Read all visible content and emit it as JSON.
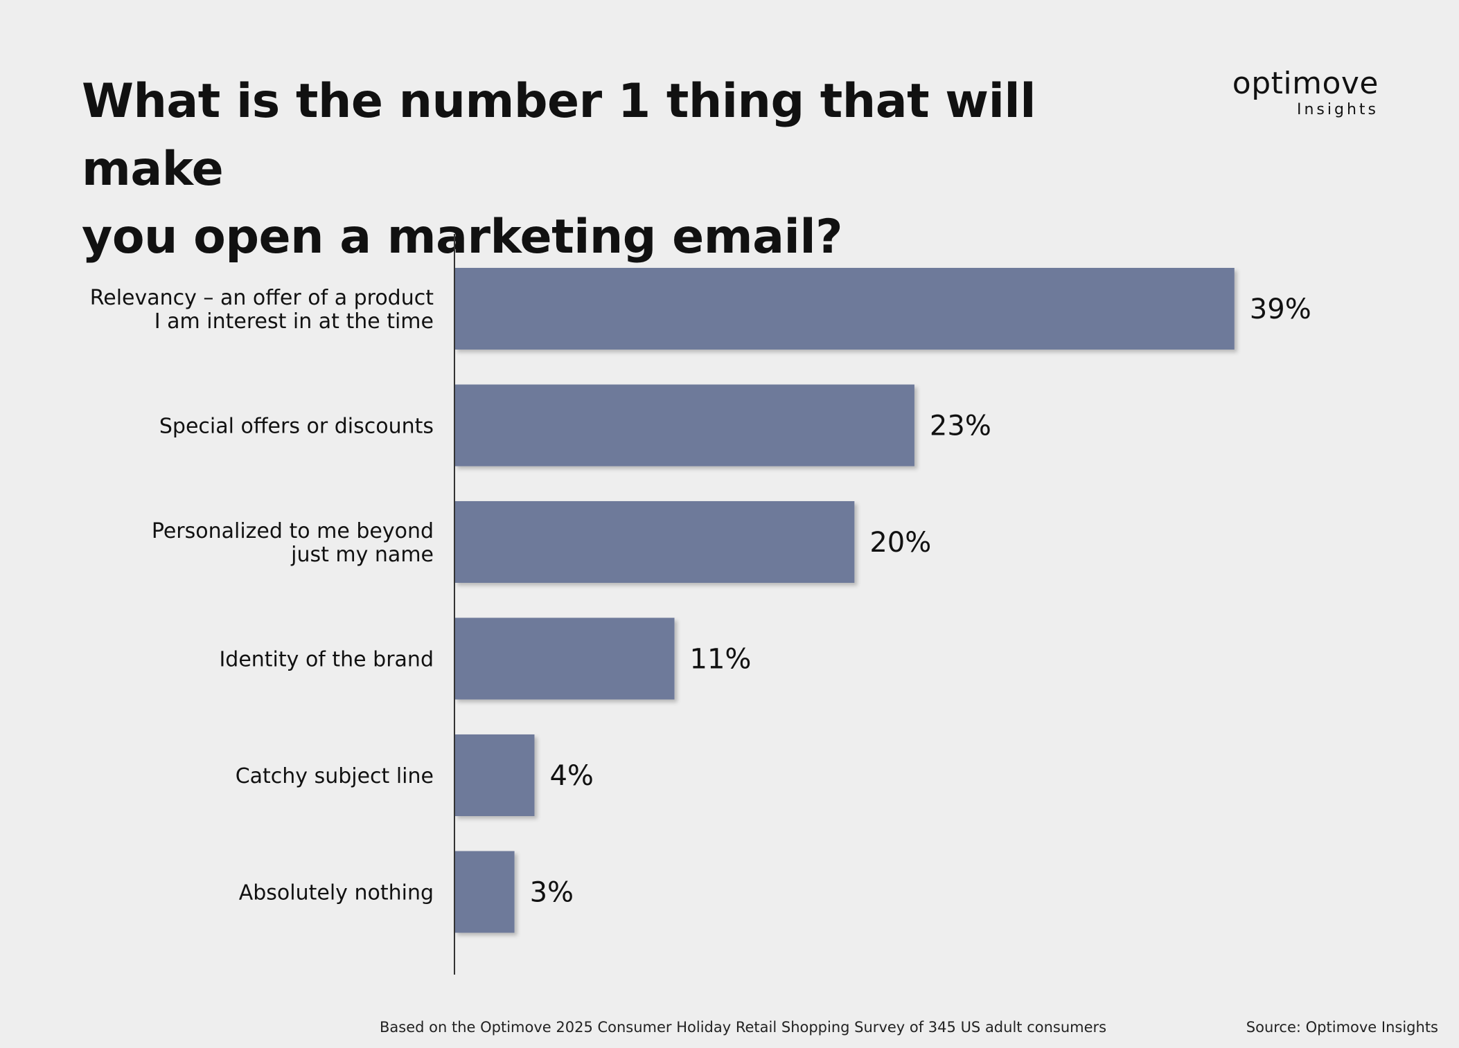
{
  "title_lines": [
    "What is the number 1 thing that will make",
    "you open a marketing email?"
  ],
  "brand": {
    "name": "optimove",
    "sub": "Insights"
  },
  "colors": {
    "bar": "#6e7a9a",
    "background": "#eeeeee",
    "axis": "#333333"
  },
  "chart_data": {
    "type": "bar",
    "orientation": "horizontal",
    "categories": [
      [
        "Relevancy – an offer of a product",
        "I am interest in at the time"
      ],
      [
        "Special offers or discounts"
      ],
      [
        "Personalized to me beyond",
        "just my name"
      ],
      [
        "Identity of the brand"
      ],
      [
        "Catchy subject line"
      ],
      [
        "Absolutely nothing"
      ]
    ],
    "values": [
      39,
      23,
      20,
      11,
      4,
      3
    ],
    "value_labels": [
      "39%",
      "23%",
      "20%",
      "11%",
      "4%",
      "3%"
    ],
    "unit": "%",
    "xlim": [
      0,
      45
    ],
    "grid": false,
    "legend": "none"
  },
  "footnote": "Based on the Optimove 2025 Consumer Holiday Retail Shopping Survey of 345 US adult consumers",
  "source": "Source: Optimove Insights"
}
